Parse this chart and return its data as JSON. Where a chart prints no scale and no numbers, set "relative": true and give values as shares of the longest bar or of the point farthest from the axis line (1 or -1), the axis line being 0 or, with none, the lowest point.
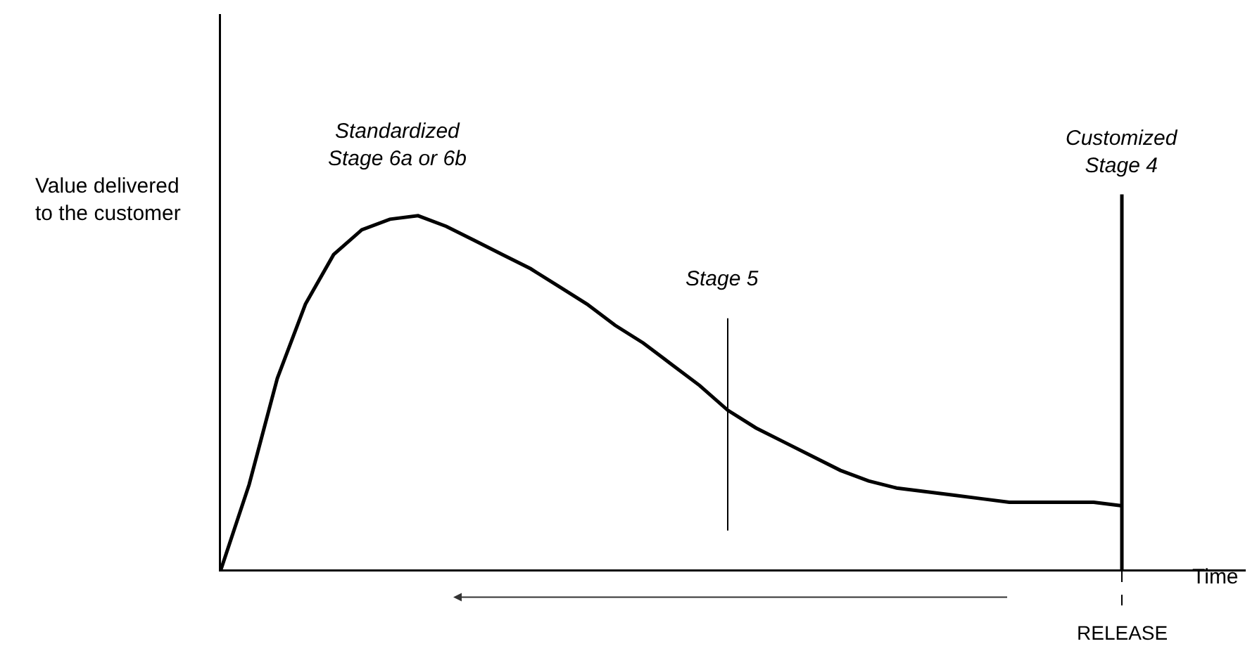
{
  "chart_data": {
    "type": "line",
    "relative": true,
    "xlabel": "Time",
    "ylabel": "Value delivered\nto the customer",
    "categories": [
      null,
      null,
      null,
      null,
      null,
      null,
      null,
      null,
      null,
      null,
      null,
      null,
      null,
      null,
      null,
      null,
      null,
      null,
      null,
      null,
      null,
      null,
      null,
      null,
      null,
      null,
      null,
      null,
      null,
      null,
      null,
      null,
      null
    ],
    "series": [
      {
        "color": "#000000",
        "values": [
          0,
          0.24,
          0.54,
          0.75,
          0.89,
          0.96,
          0.99,
          1.0,
          0.97,
          0.93,
          0.89,
          0.85,
          0.8,
          0.75,
          0.69,
          0.64,
          0.58,
          0.52,
          0.45,
          0.4,
          0.36,
          0.32,
          0.28,
          0.25,
          0.23,
          0.22,
          0.21,
          0.2,
          0.19,
          0.19,
          0.19,
          0.19,
          0.18
        ]
      }
    ],
    "annotations": [
      "Standardized\nStage 6a or 6b",
      "Stage 5",
      "Customized\nStage 4",
      "RELEASE"
    ],
    "grid": false,
    "marker": "none",
    "line_style": "solid"
  }
}
